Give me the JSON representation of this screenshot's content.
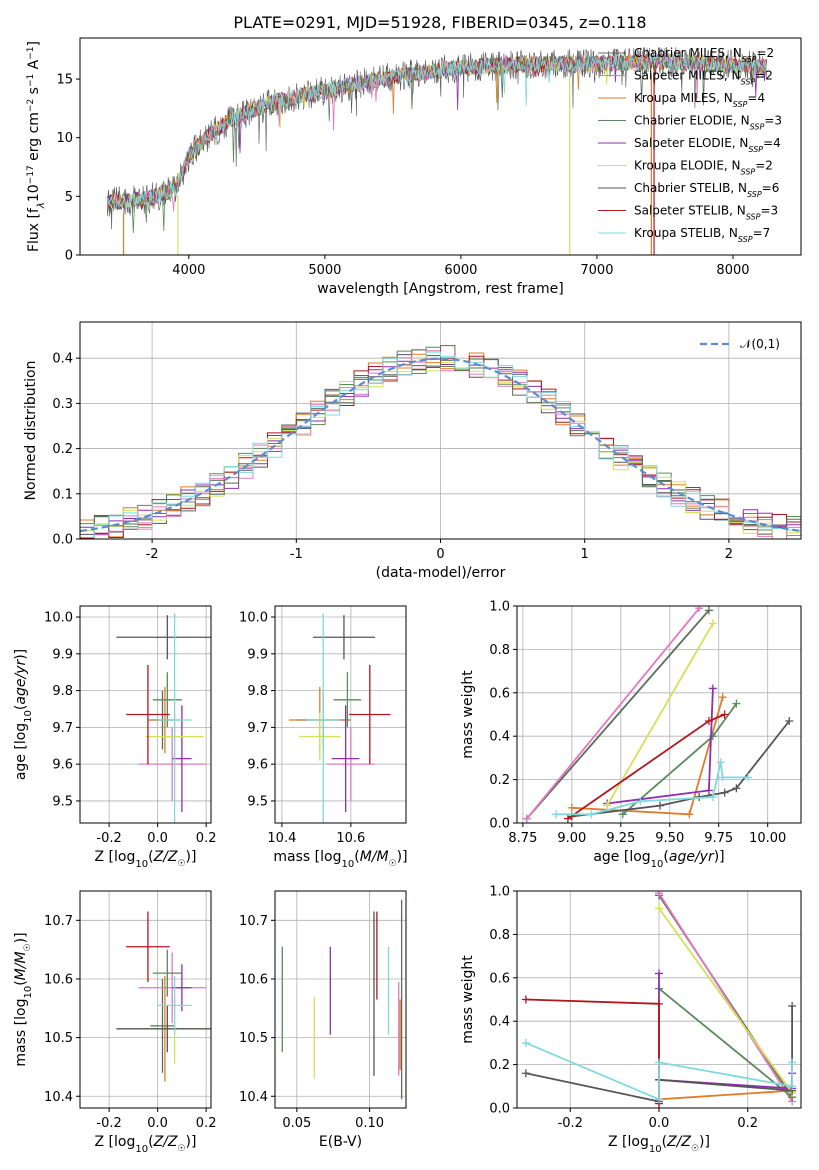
{
  "figure": {
    "title": "PLATE=0291, MJD=51928, FIBERID=0345, z=0.118"
  },
  "models": [
    {
      "name": "Chabrier MILES",
      "nssp": "2",
      "color": "#5a6e5a"
    },
    {
      "name": "Salpeter MILES",
      "nssp": "2",
      "color": "#e377c2"
    },
    {
      "name": "Kroupa MILES",
      "nssp": "4",
      "color": "#e07b2a"
    },
    {
      "name": "Chabrier ELODIE",
      "nssp": "3",
      "color": "#5b8a5b"
    },
    {
      "name": "Salpeter ELODIE",
      "nssp": "4",
      "color": "#8e2fb0"
    },
    {
      "name": "Kroupa ELODIE",
      "nssp": "2",
      "color": "#d4e157"
    },
    {
      "name": "Chabrier STELIB",
      "nssp": "6",
      "color": "#555555"
    },
    {
      "name": "Salpeter STELIB",
      "nssp": "3",
      "color": "#b0171f"
    },
    {
      "name": "Kroupa STELIB",
      "nssp": "7",
      "color": "#7fd9dd"
    }
  ],
  "chart_data": [
    {
      "id": "spectrum",
      "type": "line",
      "xlabel": "wavelength [Angstrom, rest frame]",
      "ylabel": "Flux [f",
      "xlim": [
        3200,
        8500
      ],
      "ylim": [
        0,
        18.5
      ],
      "xticks": [
        4000,
        5000,
        6000,
        7000,
        8000
      ],
      "yticks": [
        0,
        5,
        10,
        15
      ],
      "spectrum_range": [
        3400,
        8250
      ],
      "continuum": [
        [
          3400,
          4.5
        ],
        [
          3700,
          4.8
        ],
        [
          3900,
          5.6
        ],
        [
          3950,
          6.8
        ],
        [
          4000,
          8.5
        ],
        [
          4150,
          10.2
        ],
        [
          4300,
          11.5
        ],
        [
          4600,
          13.0
        ],
        [
          5000,
          14.0
        ],
        [
          5500,
          15.2
        ],
        [
          6000,
          16.0
        ],
        [
          6500,
          16.3
        ],
        [
          7000,
          16.3
        ],
        [
          7500,
          16.5
        ],
        [
          8000,
          16.2
        ],
        [
          8250,
          16.1
        ]
      ]
    },
    {
      "id": "residuals",
      "type": "line",
      "xlabel": "(data-model)/error",
      "ylabel": "Normed distribution",
      "xlim": [
        -2.5,
        2.5
      ],
      "ylim": [
        0,
        0.48
      ],
      "xticks": [
        -2,
        -1,
        0,
        1,
        2
      ],
      "yticks": [
        0.0,
        0.1,
        0.2,
        0.3,
        0.4
      ],
      "legend": "𝒩(0,1)",
      "bin_width": 0.1
    },
    {
      "id": "age-vs-z",
      "type": "scatter",
      "xlabel": "Z [log",
      "ylabel": "age  [log",
      "xlim": [
        -0.32,
        0.22
      ],
      "ylim": [
        9.44,
        10.03
      ],
      "xticks": [
        -0.2,
        0.0,
        0.2
      ],
      "yticks": [
        9.5,
        9.6,
        9.7,
        9.8,
        9.9,
        10.0
      ],
      "points": [
        {
          "x": 0.02,
          "xerr": 0.05,
          "y": 9.72,
          "yerr": 0.08
        },
        {
          "x": 0.06,
          "xerr": 0.14,
          "y": 9.6,
          "yerr": 0.1
        },
        {
          "x": 0.03,
          "xerr": 0.07,
          "y": 9.72,
          "yerr": 0.09
        },
        {
          "x": 0.04,
          "xerr": 0.06,
          "y": 9.775,
          "yerr": 0.075
        },
        {
          "x": 0.1,
          "xerr": 0.04,
          "y": 9.615,
          "yerr": 0.145
        },
        {
          "x": 0.07,
          "xerr": 0.12,
          "y": 9.675,
          "yerr": 0.065
        },
        {
          "x": 0.04,
          "xerr": 0.21,
          "y": 9.945,
          "yerr": 0.06
        },
        {
          "x": -0.04,
          "xerr": 0.09,
          "y": 9.735,
          "yerr": 0.135
        },
        {
          "x": 0.07,
          "xerr": 0.07,
          "y": 9.72,
          "yerr": 0.29
        }
      ]
    },
    {
      "id": "age-vs-mass",
      "type": "scatter",
      "xlabel": "mass [log",
      "ylabel": "",
      "xlim": [
        10.38,
        10.76
      ],
      "ylim": [
        9.44,
        10.03
      ],
      "xticks": [
        10.4,
        10.6
      ],
      "yticks": [
        9.5,
        9.6,
        9.7,
        9.8,
        9.9,
        10.0
      ],
      "points": [
        {
          "x": 10.52,
          "xerr": 0.08,
          "y": 9.72,
          "yerr": 0.08
        },
        {
          "x": 10.6,
          "xerr": 0.07,
          "y": 9.6,
          "yerr": 0.1
        },
        {
          "x": 10.51,
          "xerr": 0.09,
          "y": 9.72,
          "yerr": 0.09
        },
        {
          "x": 10.59,
          "xerr": 0.04,
          "y": 9.775,
          "yerr": 0.075
        },
        {
          "x": 10.585,
          "xerr": 0.04,
          "y": 9.615,
          "yerr": 0.145
        },
        {
          "x": 10.51,
          "xerr": 0.06,
          "y": 9.675,
          "yerr": 0.065
        },
        {
          "x": 10.58,
          "xerr": 0.09,
          "y": 9.945,
          "yerr": 0.06
        },
        {
          "x": 10.655,
          "xerr": 0.06,
          "y": 9.735,
          "yerr": 0.135
        },
        {
          "x": 10.52,
          "xerr": 0.05,
          "y": 9.72,
          "yerr": 0.29
        }
      ]
    },
    {
      "id": "mass-weight-vs-age",
      "type": "line",
      "xlabel": "age  [log",
      "ylabel": "mass weight",
      "xlim": [
        8.72,
        10.17
      ],
      "ylim": [
        0,
        1.0
      ],
      "xticks": [
        8.75,
        9.0,
        9.25,
        9.5,
        9.75,
        10.0
      ],
      "yticks": [
        0.0,
        0.2,
        0.4,
        0.6,
        0.8,
        1.0
      ],
      "series": [
        {
          "x": [
            8.77,
            9.7
          ],
          "y": [
            0.02,
            0.98
          ]
        },
        {
          "x": [
            8.77,
            9.65
          ],
          "y": [
            0.02,
            0.99
          ]
        },
        {
          "x": [
            9.0,
            9.6,
            9.77
          ],
          "y": [
            0.07,
            0.04,
            0.58
          ]
        },
        {
          "x": [
            9.26,
            9.72,
            9.84
          ],
          "y": [
            0.04,
            0.4,
            0.55
          ]
        },
        {
          "x": [
            9.18,
            9.7,
            9.72
          ],
          "y": [
            0.09,
            0.15,
            0.62
          ]
        },
        {
          "x": [
            9.18,
            9.72
          ],
          "y": [
            0.08,
            0.92
          ]
        },
        {
          "x": [
            9.0,
            9.45,
            9.65,
            9.78,
            9.84,
            10.11
          ],
          "y": [
            0.03,
            0.08,
            0.12,
            0.14,
            0.16,
            0.47
          ]
        },
        {
          "x": [
            8.98,
            9.7,
            9.78
          ],
          "y": [
            0.02,
            0.47,
            0.5
          ]
        },
        {
          "x": [
            8.92,
            9.1,
            9.35,
            9.72,
            9.76,
            9.77,
            9.9
          ],
          "y": [
            0.04,
            0.04,
            0.1,
            0.12,
            0.28,
            0.21,
            0.21
          ]
        }
      ]
    },
    {
      "id": "mass-vs-z",
      "type": "scatter",
      "xlabel": "Z [log",
      "ylabel": "mass [log",
      "xlim": [
        -0.32,
        0.22
      ],
      "ylim": [
        10.38,
        10.75
      ],
      "xticks": [
        -0.2,
        0.0,
        0.2
      ],
      "yticks": [
        10.4,
        10.5,
        10.6,
        10.7
      ],
      "points": [
        {
          "x": 0.02,
          "xerr": 0.05,
          "y": 10.52,
          "yerr": 0.08
        },
        {
          "x": 0.06,
          "xerr": 0.14,
          "y": 10.585,
          "yerr": 0.06
        },
        {
          "x": 0.03,
          "xerr": 0.07,
          "y": 10.515,
          "yerr": 0.09
        },
        {
          "x": 0.04,
          "xerr": 0.06,
          "y": 10.61,
          "yerr": 0.04
        },
        {
          "x": 0.1,
          "xerr": 0.04,
          "y": 10.585,
          "yerr": 0.04
        },
        {
          "x": 0.07,
          "xerr": 0.12,
          "y": 10.515,
          "yerr": 0.06
        },
        {
          "x": 0.04,
          "xerr": 0.21,
          "y": 10.515,
          "yerr": 0.04
        },
        {
          "x": -0.04,
          "xerr": 0.09,
          "y": 10.655,
          "yerr": 0.06
        },
        {
          "x": 0.07,
          "xerr": 0.07,
          "y": 10.555,
          "yerr": 0.05
        }
      ]
    },
    {
      "id": "mass-vs-ebv",
      "type": "scatter",
      "xlabel": "E(B-V)",
      "ylabel": "",
      "xlim": [
        0.035,
        0.125
      ],
      "ylim": [
        10.38,
        10.75
      ],
      "xticks": [
        0.05,
        0.1
      ],
      "yticks": [
        10.4,
        10.5,
        10.6,
        10.7
      ],
      "points": [
        {
          "x": 0.122,
          "y": 10.565,
          "yerr": 0.17
        },
        {
          "x": 0.12,
          "y": 10.515,
          "yerr": 0.08
        },
        {
          "x": 0.121,
          "y": 10.505,
          "yerr": 0.06
        },
        {
          "x": 0.04,
          "y": 10.565,
          "yerr": 0.09
        },
        {
          "x": 0.073,
          "y": 10.58,
          "yerr": 0.075
        },
        {
          "x": 0.062,
          "y": 10.5,
          "yerr": 0.07
        },
        {
          "x": 0.103,
          "y": 10.575,
          "yerr": 0.14
        },
        {
          "x": 0.105,
          "y": 10.64,
          "yerr": 0.075
        },
        {
          "x": 0.113,
          "y": 10.58,
          "yerr": 0.075
        }
      ]
    },
    {
      "id": "mass-weight-vs-z",
      "type": "line",
      "xlabel": "Z [log",
      "ylabel": "mass weight",
      "xlim": [
        -0.32,
        0.32
      ],
      "ylim": [
        0,
        1.0
      ],
      "xticks": [
        -0.2,
        0.0,
        0.2
      ],
      "yticks": [
        0.0,
        0.2,
        0.4,
        0.6,
        0.8,
        1.0
      ],
      "series": [
        {
          "x": [
            0.0,
            0.3
          ],
          "y": [
            0.98,
            0.05
          ]
        },
        {
          "x": [
            0.0,
            0.3
          ],
          "y": [
            0.99,
            0.03
          ]
        },
        {
          "x": [
            0.0,
            0.3
          ],
          "y": [
            0.04,
            0.08
          ]
        },
        {
          "x": [
            0.0,
            0.3
          ],
          "y": [
            0.55,
            0.05
          ]
        },
        {
          "x": [
            0.0,
            0.0,
            0.3,
            0.3
          ],
          "y": [
            0.62,
            0.13,
            0.09,
            0.16
          ]
        },
        {
          "x": [
            0.0,
            0.3
          ],
          "y": [
            0.92,
            0.07
          ]
        },
        {
          "x": [
            -0.3,
            0.0,
            0.0,
            0.3,
            0.3
          ],
          "y": [
            0.16,
            0.03,
            0.13,
            0.08,
            0.47
          ]
        },
        {
          "x": [
            -0.3,
            0.0,
            0.0
          ],
          "y": [
            0.5,
            0.48,
            0.02
          ]
        },
        {
          "x": [
            -0.3,
            0.0,
            0.0,
            0.3,
            0.3
          ],
          "y": [
            0.3,
            0.04,
            0.21,
            0.1,
            0.21
          ]
        }
      ]
    }
  ]
}
